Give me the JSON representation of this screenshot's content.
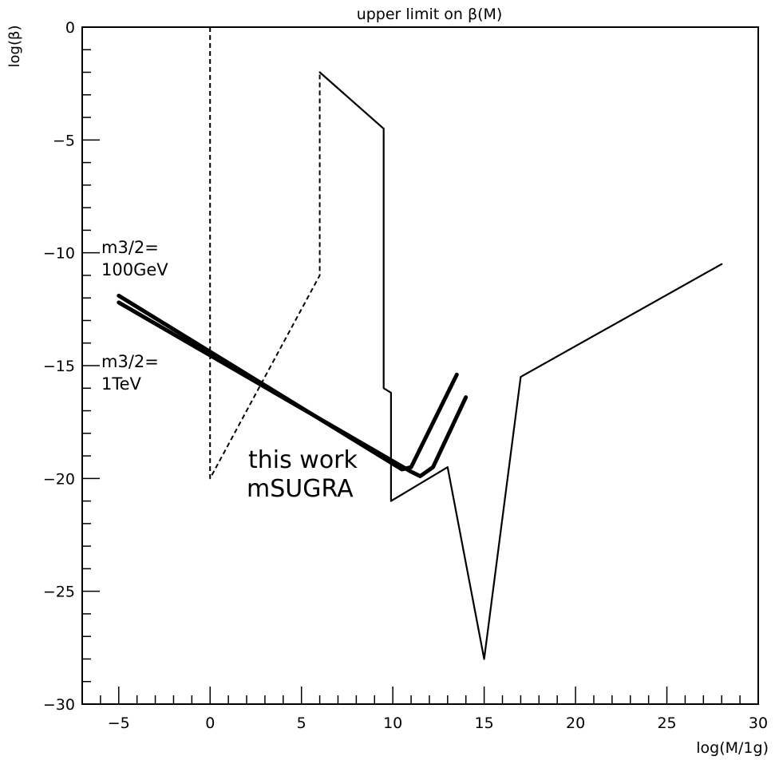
{
  "chart_data": {
    "type": "line",
    "title": "upper limit on β(M)",
    "xlabel": "log(M/1g)",
    "ylabel": "log(β)",
    "xlim": [
      -7,
      30
    ],
    "ylim": [
      -30,
      0
    ],
    "xticks": [
      -5,
      0,
      5,
      10,
      15,
      20,
      25,
      30
    ],
    "yticks": [
      0,
      -5,
      -10,
      -15,
      -20,
      -25,
      -30
    ],
    "grid": false,
    "series": [
      {
        "style": "dashed",
        "points": [
          [
            0,
            0
          ],
          [
            0,
            -20
          ],
          [
            6,
            -11
          ],
          [
            6,
            -2
          ]
        ]
      },
      {
        "style": "solid",
        "points": [
          [
            6,
            -2
          ],
          [
            9.5,
            -4.5
          ],
          [
            9.5,
            -16
          ],
          [
            9.9,
            -16.2
          ],
          [
            9.9,
            -21
          ],
          [
            13,
            -19.5
          ],
          [
            15,
            -28
          ],
          [
            17,
            -15.5
          ],
          [
            28,
            -10.5
          ]
        ]
      },
      {
        "style": "thick",
        "points": [
          [
            -5,
            -11.9
          ],
          [
            10.5,
            -19.6
          ],
          [
            11,
            -19.5
          ],
          [
            13.5,
            -15.4
          ]
        ]
      },
      {
        "style": "thick",
        "points": [
          [
            -5,
            -12.2
          ],
          [
            11,
            -19.7
          ],
          [
            11.5,
            -19.9
          ],
          [
            12.2,
            -19.5
          ],
          [
            14,
            -16.4
          ]
        ]
      }
    ],
    "annotations": [
      {
        "lines": [
          "m3/2=",
          "100GeV"
        ]
      },
      {
        "lines": [
          "m3/2=",
          "1TeV"
        ]
      },
      {
        "lines": [
          "this work",
          "mSUGRA"
        ]
      }
    ]
  }
}
